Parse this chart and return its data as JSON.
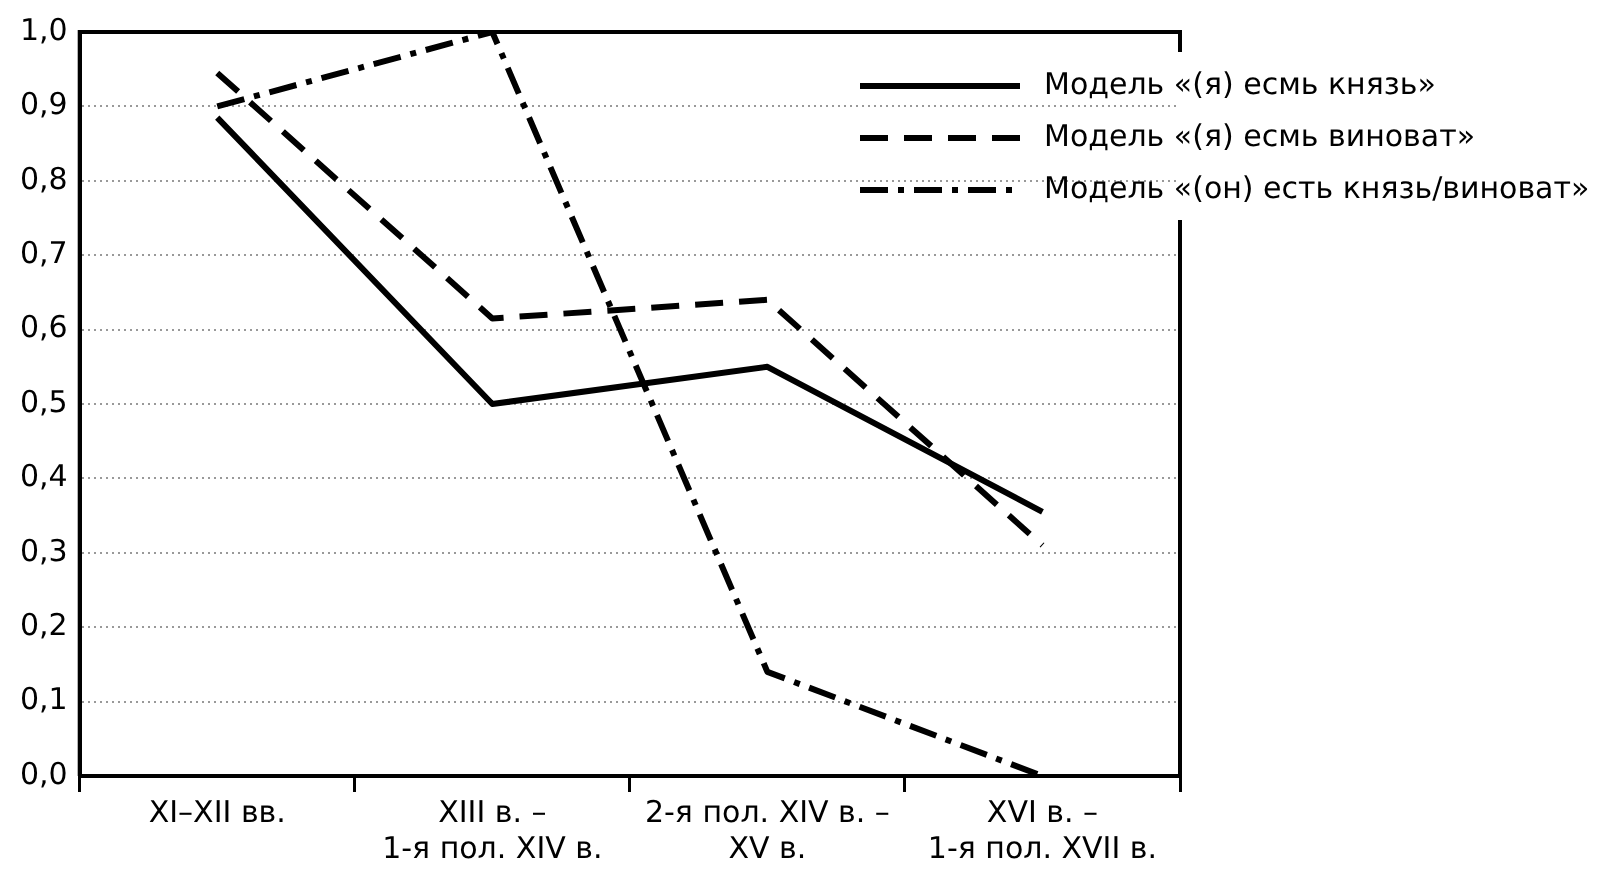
{
  "chart_data": {
    "type": "line",
    "categories": [
      "XI–XII вв.",
      "XIII в. –\n1-я пол. XIV в.",
      "2-я пол. XIV в. –\nXV в.",
      "XVI в. –\n1-я пол. XVII в."
    ],
    "series": [
      {
        "name": "Модель «(я) есмь князь»",
        "color": "#000000",
        "line_style": "solid",
        "values": [
          0.885,
          0.5,
          0.55,
          0.355
        ]
      },
      {
        "name": "Модель «(я) есмь виноват»",
        "color": "#000000",
        "line_style": "dashed",
        "values": [
          0.945,
          0.615,
          0.64,
          0.31
        ]
      },
      {
        "name": "Модель «(он) есть князь/виноват»",
        "color": "#000000",
        "line_style": "dashdot",
        "values": [
          0.9,
          1.0,
          0.14,
          0.0
        ]
      }
    ],
    "ylim": [
      0,
      1
    ],
    "yticks": [
      {
        "value": 0,
        "label": "0,0"
      },
      {
        "value": 0.1,
        "label": "0,1"
      },
      {
        "value": 0.2,
        "label": "0,2"
      },
      {
        "value": 0.3,
        "label": "0,3"
      },
      {
        "value": 0.4,
        "label": "0,4"
      },
      {
        "value": 0.5,
        "label": "0,5"
      },
      {
        "value": 0.6,
        "label": "0,6"
      },
      {
        "value": 0.7,
        "label": "0,7"
      },
      {
        "value": 0.8,
        "label": "0,8"
      },
      {
        "value": 0.9,
        "label": "0,9"
      },
      {
        "value": 1,
        "label": "1,0"
      }
    ],
    "grid": "y",
    "legend": "top right",
    "marker": "none"
  }
}
